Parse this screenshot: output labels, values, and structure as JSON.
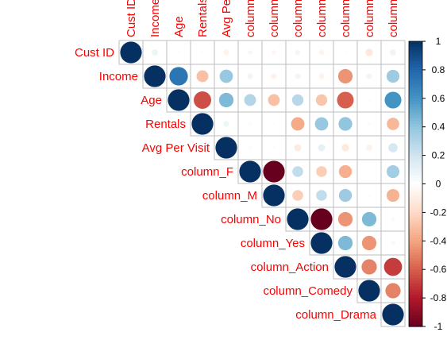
{
  "chart_data": {
    "type": "heatmap",
    "variables": [
      "Cust ID",
      "Income",
      "Age",
      "Rentals",
      "Avg Per Visit",
      "column_F",
      "column_M",
      "column_No",
      "column_Yes",
      "column_Action",
      "column_Comedy",
      "column_Drama"
    ],
    "top_labels": [
      "Cust ID",
      "Income",
      "Age",
      "Rentals",
      "Avg Pe",
      "column",
      "column",
      "column",
      "column",
      "column",
      "column",
      "column"
    ],
    "matrix": [
      [
        1.0,
        0.08,
        -0.02,
        0.02,
        -0.07,
        0.05,
        -0.05,
        0.06,
        -0.06,
        -0.02,
        -0.12,
        0.08
      ],
      [
        0.08,
        1.0,
        0.73,
        -0.3,
        0.38,
        0.07,
        -0.07,
        0.07,
        -0.07,
        -0.45,
        0.07,
        0.36
      ],
      [
        -0.02,
        0.73,
        1.0,
        -0.65,
        0.45,
        0.3,
        -0.3,
        0.28,
        -0.28,
        -0.6,
        0.02,
        0.6
      ],
      [
        0.02,
        -0.3,
        -0.65,
        1.0,
        0.07,
        0.02,
        -0.02,
        -0.38,
        0.38,
        0.4,
        -0.03,
        -0.33
      ],
      [
        -0.07,
        0.38,
        0.45,
        0.07,
        1.0,
        0.02,
        -0.02,
        -0.11,
        0.11,
        -0.12,
        -0.08,
        0.18
      ],
      [
        0.05,
        0.07,
        0.3,
        0.02,
        0.02,
        1.0,
        -1.0,
        0.25,
        -0.25,
        -0.36,
        -0.02,
        0.35
      ],
      [
        -0.05,
        -0.07,
        -0.3,
        -0.02,
        -0.02,
        -1.0,
        1.0,
        -0.25,
        0.25,
        0.36,
        0.02,
        -0.35
      ],
      [
        0.06,
        0.07,
        0.28,
        -0.38,
        -0.11,
        0.25,
        -0.25,
        1.0,
        -1.0,
        -0.45,
        0.45,
        -0.04
      ],
      [
        -0.06,
        -0.07,
        -0.28,
        0.38,
        0.11,
        -0.25,
        0.25,
        -1.0,
        1.0,
        0.45,
        -0.45,
        0.04
      ],
      [
        -0.02,
        -0.45,
        -0.6,
        0.4,
        -0.12,
        -0.36,
        0.36,
        -0.45,
        0.45,
        1.0,
        -0.5,
        -0.7
      ],
      [
        -0.12,
        0.07,
        0.02,
        -0.03,
        -0.08,
        -0.02,
        0.02,
        0.45,
        -0.45,
        -0.5,
        1.0,
        -0.5
      ],
      [
        0.08,
        0.36,
        0.6,
        -0.33,
        0.18,
        0.35,
        -0.35,
        -0.04,
        0.04,
        -0.7,
        -0.5,
        1.0
      ]
    ],
    "layout": "upper",
    "method": "circle",
    "colorbar": {
      "range": [
        -1,
        1
      ],
      "ticks": [
        "1",
        "0.8",
        "0.6",
        "0.4",
        "0.2",
        "0",
        "-0.2",
        "-0.4",
        "-0.6",
        "-0.8",
        "-1"
      ],
      "tick_values": [
        1,
        0.8,
        0.6,
        0.4,
        0.2,
        0,
        -0.2,
        -0.4,
        -0.6,
        -0.8,
        -1
      ]
    },
    "label_color": "#FF0000",
    "grid": true
  }
}
